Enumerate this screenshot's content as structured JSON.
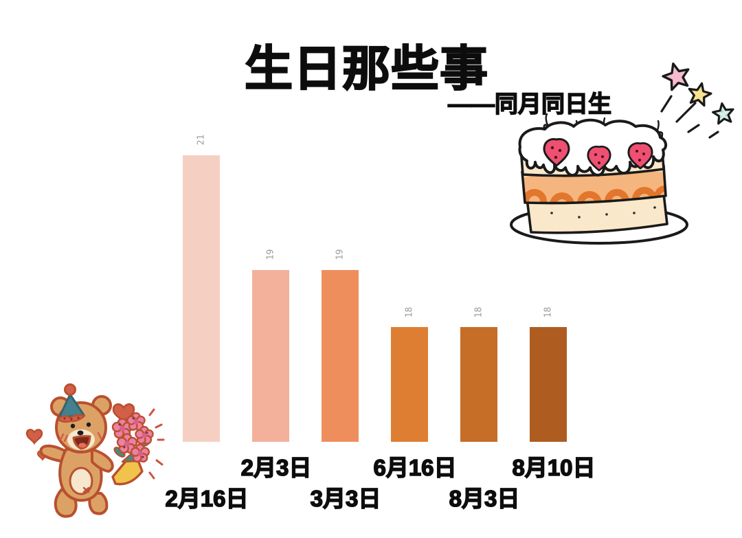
{
  "header": {
    "title": "生日那些事",
    "subtitle": "——同月同日生"
  },
  "chart_data": {
    "type": "bar",
    "title": "生日那些事",
    "subtitle": "——同月同日生",
    "categories": [
      "2月16日",
      "2月3日",
      "3月3日",
      "6月16日",
      "8月3日",
      "8月10日"
    ],
    "values": [
      21,
      19,
      19,
      18,
      18,
      18
    ],
    "bar_colors": [
      "#F6CFC3",
      "#F3B19C",
      "#EF8E5D",
      "#DE7E32",
      "#C66D28",
      "#AE5C20"
    ],
    "value_label_color": "#9b9b9b",
    "value_labels_rotated": true,
    "category_label_rows": [
      "lower",
      "upper",
      "lower",
      "upper",
      "lower",
      "upper"
    ],
    "xlabel": "",
    "ylabel": "",
    "ylim": [
      16,
      21
    ],
    "grid": false,
    "legend": false,
    "axis_lines": false
  },
  "illustrations": {
    "cake": "hand-drawn birthday cake with five candles, three strawberries, plate and three stars",
    "bear": "teddy bear with teal party hat holding a pink flower bouquet, surrounded by red hearts"
  },
  "colors": {
    "background": "#ffffff",
    "text": "#0d0d0d",
    "outline_black": "#1a1a1a",
    "bear_fur": "#DCA265",
    "bear_outline": "#B9502F",
    "bear_cream": "#F6E7CD",
    "heart_red": "#D26049",
    "hat_teal": "#44808E",
    "flower_pink": "#EC81A4",
    "wrap_yellow": "#F2C34C",
    "cake_sponge": "#FAE8CA",
    "cake_filling": "#F5B57E",
    "cake_filling_dark": "#E2762D",
    "strawberry": "#EF5072",
    "star_pink": "#F6BCCE",
    "star_yellow": "#F6E291",
    "star_mint": "#D9F0E4"
  }
}
